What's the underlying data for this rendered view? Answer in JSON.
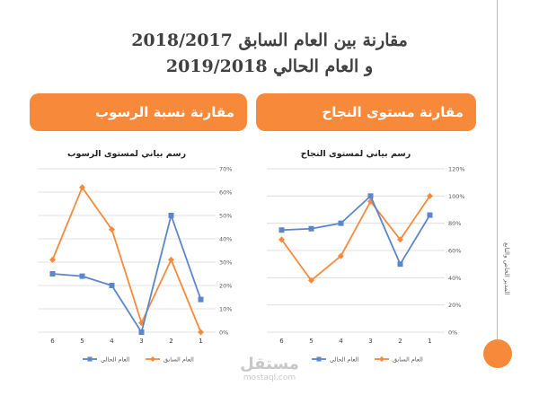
{
  "title_line1": "مقارنة بين العام السابق 2018/2017",
  "title_line2": "و العام الحالي 2019/2018",
  "banner_left": "مقارنة نسبة الرسوب",
  "banner_right": "مقارنة مستوى النجاح",
  "side_text": "المدير الخاص والتابع",
  "watermark_ar": "مستقل",
  "watermark_en": "mostaql.com",
  "colors": {
    "orange": "#f7893b",
    "blue": "#5b86c9"
  },
  "chart_data": [
    {
      "type": "line",
      "title": "رسم بياني لمستوى الرسوب",
      "categories": [
        "6",
        "5",
        "4",
        "3",
        "2",
        "1"
      ],
      "ylim": [
        0,
        70
      ],
      "yticks": [
        "0%",
        "10%",
        "20%",
        "30%",
        "40%",
        "50%",
        "60%",
        "70%"
      ],
      "series": [
        {
          "name": "العام السابق",
          "values": [
            31,
            62,
            44,
            4,
            31,
            0
          ]
        },
        {
          "name": "العام الحالي",
          "values": [
            25,
            24,
            20,
            0,
            50,
            14
          ]
        }
      ]
    },
    {
      "type": "line",
      "title": "رسم بياني لمستوى النجاح",
      "categories": [
        "6",
        "5",
        "4",
        "3",
        "2",
        "1"
      ],
      "ylim": [
        0,
        120
      ],
      "yticks": [
        "0%",
        "20%",
        "40%",
        "60%",
        "80%",
        "100%",
        "120%"
      ],
      "series": [
        {
          "name": "العام السابق",
          "values": [
            68,
            38,
            56,
            96,
            68,
            100
          ]
        },
        {
          "name": "العام الحالي",
          "values": [
            75,
            76,
            80,
            100,
            50,
            86
          ]
        }
      ]
    }
  ]
}
